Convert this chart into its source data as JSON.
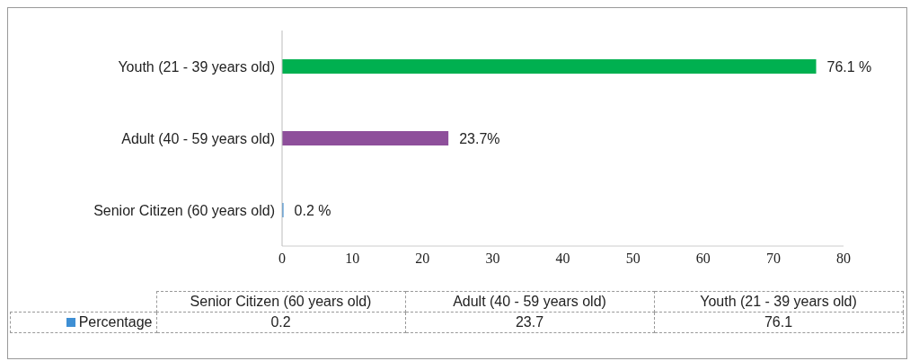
{
  "chart_data": {
    "type": "bar",
    "orientation": "horizontal",
    "categories": [
      "Youth (21 - 39 years old)",
      "Adult (40 - 59 years old)",
      "Senior Citizen (60 years old)"
    ],
    "series": [
      {
        "name": "Percentage",
        "color": "#3e8fd4",
        "colors": [
          "#00b050",
          "#8e4f9b",
          "#3e8fd4"
        ],
        "values": [
          76.1,
          23.7,
          0.2
        ],
        "value_labels": [
          "76.1 %",
          "23.7%",
          "0.2 %"
        ]
      }
    ],
    "xlim": [
      0,
      80
    ],
    "xticks": [
      0,
      10,
      20,
      30,
      40,
      50,
      60,
      70,
      80
    ],
    "legend": "bottom left",
    "data_labels": true,
    "annotations": [
      "0.2",
      "23.7",
      "76.1"
    ]
  }
}
